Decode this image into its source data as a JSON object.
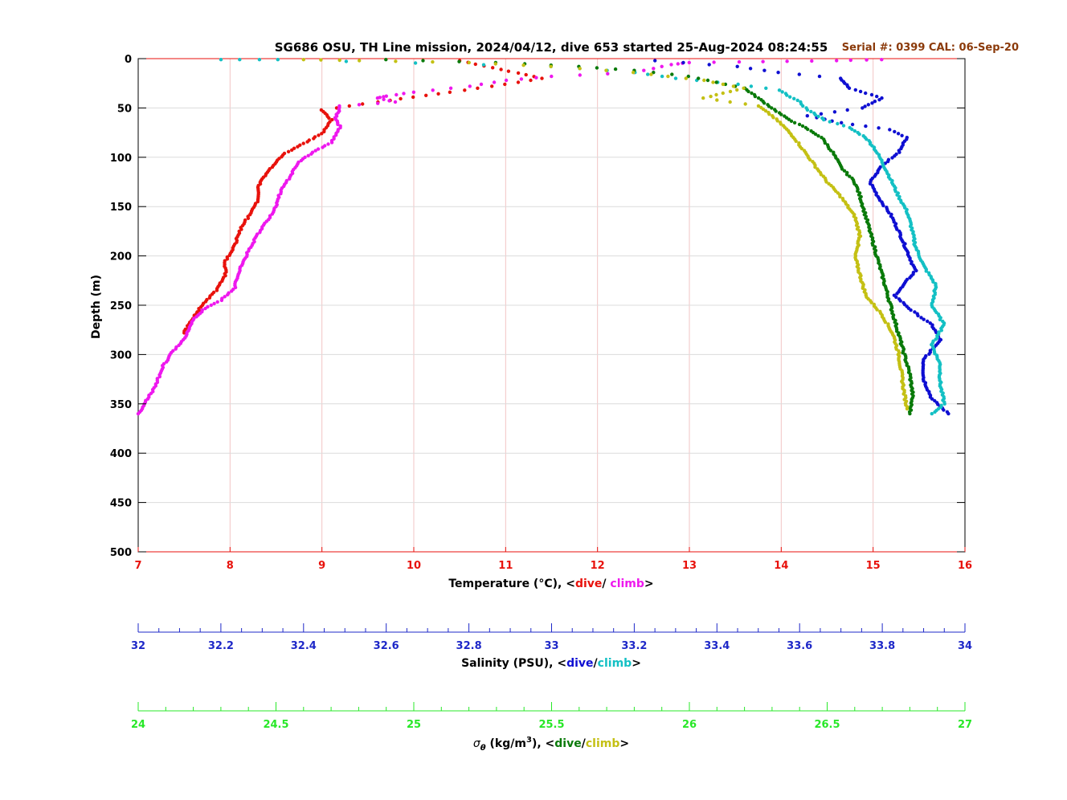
{
  "title": "SG686 OSU, TH Line mission, 2024/04/12, dive 653 started 25-Aug-2024 08:24:55",
  "serial_text": "Serial #: 0399  CAL: 06-Sep-20",
  "colors": {
    "temp_dive": "#e8120c",
    "temp_climb": "#ee18ee",
    "sal_dive": "#0f0fd2",
    "sal_climb": "#14c0c4",
    "sigma_dive": "#0a7a0a",
    "sigma_climb": "#c4c014",
    "sigma_axis": "#28e828",
    "temp_axis": "#e8120c",
    "sal_axis": "#1e28c8",
    "serial": "#8b3a0a",
    "grid_red": "#f2c4c4",
    "grid_gray": "#dcdcdc"
  },
  "depth_axis": {
    "label": "Depth (m)",
    "range": [
      0,
      500
    ],
    "ticks": [
      0,
      50,
      100,
      150,
      200,
      250,
      300,
      350,
      400,
      450,
      500
    ]
  },
  "temp_axis": {
    "label_prefix": "Temperature (°C), <",
    "dive": "dive",
    "sep": "/ ",
    "climb": "climb",
    "suffix": ">",
    "range": [
      7,
      16
    ],
    "ticks": [
      "7",
      "8",
      "9",
      "10",
      "11",
      "12",
      "13",
      "14",
      "15",
      "16"
    ]
  },
  "sal_axis": {
    "label_prefix": "Salinity (PSU), <",
    "dive": "dive",
    "sep": "/",
    "climb": "climb",
    "suffix": ">",
    "range": [
      32,
      34
    ],
    "ticks": [
      "32",
      "32.2",
      "32.4",
      "32.6",
      "32.8",
      "33",
      "33.2",
      "33.4",
      "33.6",
      "33.8",
      "34"
    ]
  },
  "sigma_axis": {
    "label_symbol": "σ",
    "label_sub": "θ",
    "label_units": " (kg/m",
    "label_sup": "3",
    "label_close": "), <",
    "dive": "dive",
    "sep": "/",
    "climb": "climb",
    "suffix": ">",
    "range": [
      24,
      27
    ],
    "ticks": [
      "24",
      "24.5",
      "25",
      "25.5",
      "26",
      "26.5",
      "27"
    ]
  },
  "chart_data": {
    "type": "scatter",
    "title": "SG686 OSU, TH Line mission, 2024/04/12, dive 653 started 25-Aug-2024 08:24:55",
    "ylabel": "Depth (m)",
    "ylim": [
      500,
      0
    ],
    "grid": true,
    "series": [
      {
        "name": "dive",
        "axis": "temperature",
        "color": "#e8120c",
        "points": [
          [
            10.5,
            2
          ],
          [
            11.4,
            20
          ],
          [
            11.0,
            26
          ],
          [
            10.4,
            34
          ],
          [
            9.6,
            44
          ],
          [
            9.0,
            52
          ],
          [
            9.1,
            62
          ],
          [
            9.05,
            70
          ],
          [
            9.0,
            76
          ],
          [
            8.8,
            86
          ],
          [
            8.6,
            96
          ],
          [
            8.45,
            110
          ],
          [
            8.35,
            122
          ],
          [
            8.3,
            132
          ],
          [
            8.3,
            145
          ],
          [
            8.2,
            160
          ],
          [
            8.1,
            175
          ],
          [
            8.05,
            190
          ],
          [
            7.95,
            205
          ],
          [
            7.95,
            220
          ],
          [
            7.85,
            235
          ],
          [
            7.7,
            250
          ],
          [
            7.6,
            262
          ],
          [
            7.5,
            278
          ]
        ]
      },
      {
        "name": "climb",
        "axis": "temperature",
        "color": "#ee18ee",
        "points": [
          [
            15.1,
            1
          ],
          [
            14.6,
            2
          ],
          [
            13.8,
            3
          ],
          [
            13.0,
            4
          ],
          [
            12.8,
            6
          ],
          [
            12.4,
            14
          ],
          [
            11.5,
            18
          ],
          [
            11.0,
            22
          ],
          [
            10.6,
            28
          ],
          [
            10.0,
            34
          ],
          [
            9.7,
            38
          ],
          [
            9.6,
            40
          ],
          [
            9.8,
            44
          ],
          [
            9.2,
            48
          ],
          [
            9.15,
            60
          ],
          [
            9.2,
            70
          ],
          [
            9.1,
            85
          ],
          [
            8.9,
            95
          ],
          [
            8.75,
            105
          ],
          [
            8.65,
            120
          ],
          [
            8.55,
            135
          ],
          [
            8.5,
            150
          ],
          [
            8.4,
            165
          ],
          [
            8.3,
            178
          ],
          [
            8.2,
            195
          ],
          [
            8.1,
            215
          ],
          [
            8.05,
            232
          ],
          [
            7.9,
            245
          ],
          [
            7.7,
            255
          ],
          [
            7.6,
            265
          ],
          [
            7.5,
            285
          ],
          [
            7.35,
            300
          ],
          [
            7.25,
            315
          ],
          [
            7.2,
            330
          ],
          [
            7.1,
            345
          ],
          [
            7.05,
            355
          ],
          [
            7.0,
            360
          ]
        ]
      },
      {
        "name": "dive",
        "axis": "salinity",
        "color": "#0f0fd2",
        "points": [
          [
            33.25,
            2
          ],
          [
            33.45,
            8
          ],
          [
            33.55,
            14
          ],
          [
            33.7,
            20
          ],
          [
            33.72,
            30
          ],
          [
            33.8,
            40
          ],
          [
            33.75,
            50
          ],
          [
            33.62,
            58
          ],
          [
            33.7,
            65
          ],
          [
            33.82,
            72
          ],
          [
            33.86,
            80
          ],
          [
            33.84,
            95
          ],
          [
            33.8,
            108
          ],
          [
            33.77,
            125
          ],
          [
            33.79,
            140
          ],
          [
            33.82,
            158
          ],
          [
            33.84,
            175
          ],
          [
            33.86,
            195
          ],
          [
            33.88,
            215
          ],
          [
            33.83,
            240
          ],
          [
            33.87,
            255
          ],
          [
            33.92,
            270
          ],
          [
            33.94,
            285
          ],
          [
            33.9,
            305
          ],
          [
            33.9,
            325
          ],
          [
            33.92,
            345
          ],
          [
            33.96,
            360
          ]
        ]
      },
      {
        "name": "climb",
        "axis": "salinity",
        "color": "#14c0c4",
        "points": [
          [
            32.2,
            1
          ],
          [
            32.34,
            1
          ],
          [
            33.0,
            8
          ],
          [
            33.2,
            14
          ],
          [
            33.3,
            20
          ],
          [
            33.45,
            26
          ],
          [
            33.55,
            32
          ],
          [
            33.6,
            44
          ],
          [
            33.62,
            52
          ],
          [
            33.66,
            62
          ],
          [
            33.72,
            70
          ],
          [
            33.76,
            80
          ],
          [
            33.78,
            90
          ],
          [
            33.8,
            105
          ],
          [
            33.82,
            122
          ],
          [
            33.84,
            140
          ],
          [
            33.86,
            155
          ],
          [
            33.87,
            170
          ],
          [
            33.88,
            190
          ],
          [
            33.9,
            210
          ],
          [
            33.93,
            230
          ],
          [
            33.92,
            250
          ],
          [
            33.95,
            270
          ],
          [
            33.92,
            290
          ],
          [
            33.94,
            310
          ],
          [
            33.94,
            330
          ],
          [
            33.95,
            350
          ],
          [
            33.92,
            360
          ]
        ]
      },
      {
        "name": "dive",
        "axis": "sigma_theta",
        "color": "#0a7a0a",
        "points": [
          [
            24.9,
            1
          ],
          [
            25.3,
            4
          ],
          [
            25.6,
            8
          ],
          [
            25.8,
            12
          ],
          [
            26.0,
            18
          ],
          [
            26.1,
            24
          ],
          [
            26.2,
            30
          ],
          [
            26.25,
            40
          ],
          [
            26.3,
            50
          ],
          [
            26.35,
            60
          ],
          [
            26.42,
            70
          ],
          [
            26.48,
            80
          ],
          [
            26.52,
            95
          ],
          [
            26.55,
            110
          ],
          [
            26.6,
            125
          ],
          [
            26.62,
            140
          ],
          [
            26.64,
            160
          ],
          [
            26.66,
            180
          ],
          [
            26.68,
            200
          ],
          [
            26.7,
            220
          ],
          [
            26.72,
            240
          ],
          [
            26.74,
            260
          ],
          [
            26.76,
            280
          ],
          [
            26.78,
            300
          ],
          [
            26.8,
            320
          ],
          [
            26.81,
            340
          ],
          [
            26.8,
            360
          ]
        ]
      },
      {
        "name": "climb",
        "axis": "sigma_theta",
        "color": "#c4c014",
        "points": [
          [
            24.6,
            1
          ],
          [
            24.8,
            2
          ],
          [
            25.2,
            4
          ],
          [
            25.5,
            8
          ],
          [
            25.8,
            14
          ],
          [
            26.05,
            22
          ],
          [
            26.2,
            30
          ],
          [
            26.05,
            40
          ],
          [
            26.25,
            48
          ],
          [
            26.3,
            58
          ],
          [
            26.34,
            68
          ],
          [
            26.38,
            80
          ],
          [
            26.42,
            95
          ],
          [
            26.46,
            110
          ],
          [
            26.5,
            125
          ],
          [
            26.55,
            140
          ],
          [
            26.6,
            160
          ],
          [
            26.62,
            180
          ],
          [
            26.6,
            200
          ],
          [
            26.62,
            220
          ],
          [
            26.64,
            240
          ],
          [
            26.7,
            260
          ],
          [
            26.74,
            280
          ],
          [
            26.76,
            300
          ],
          [
            26.77,
            320
          ],
          [
            26.78,
            340
          ],
          [
            26.79,
            355
          ]
        ]
      }
    ]
  }
}
